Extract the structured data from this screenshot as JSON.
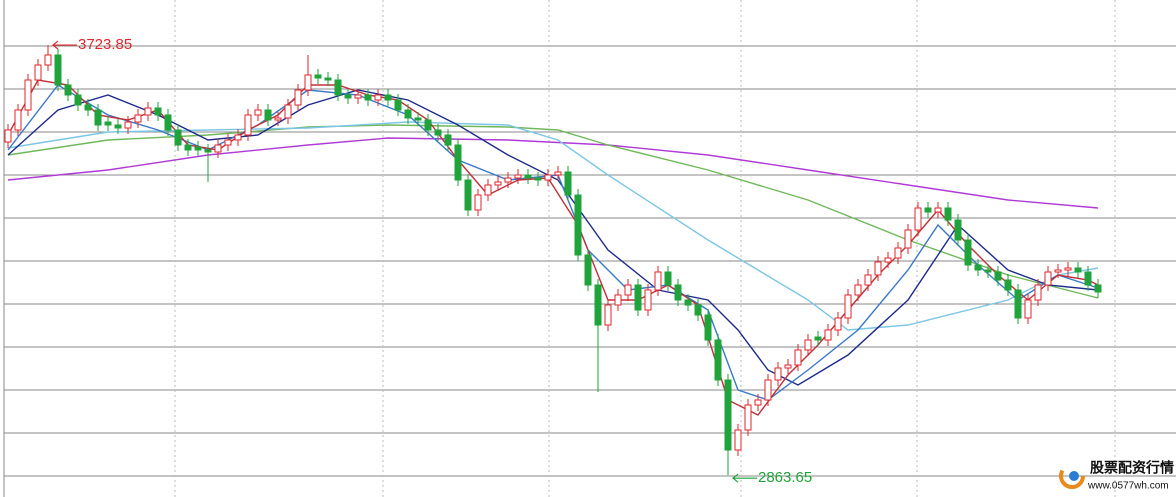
{
  "chart_data": {
    "type": "candlestick",
    "ylim": [
      2820,
      3814
    ],
    "yticks": [
      3722,
      3636,
      3550,
      3464,
      3378,
      3292,
      3206,
      3120,
      3034,
      2948,
      2862
    ],
    "xgrid": [
      16.7,
      37.5,
      54.1,
      73.3,
      90.9,
      110.7
    ],
    "grid": true,
    "up_color": "#e0262b",
    "down_color": "#1fa33a",
    "open": [
      3530,
      3554,
      3594,
      3654,
      3684,
      3704,
      3644,
      3624,
      3604,
      3594,
      3570,
      3564,
      3558,
      3570,
      3584,
      3598,
      3584,
      3554,
      3524,
      3520,
      3514,
      3510,
      3524,
      3534,
      3544,
      3584,
      3594,
      3574,
      3578,
      3604,
      3634,
      3664,
      3658,
      3654,
      3624,
      3618,
      3624,
      3614,
      3624,
      3614,
      3594,
      3578,
      3574,
      3554,
      3544,
      3524,
      3454,
      3394,
      3424,
      3444,
      3450,
      3458,
      3464,
      3458,
      3454,
      3464,
      3470,
      3424,
      3304,
      3244,
      3164,
      3204,
      3224,
      3244,
      3194,
      3234,
      3270,
      3244,
      3214,
      3204,
      3184,
      3134,
      3054,
      2914,
      2954,
      3004,
      3014,
      3054,
      3078,
      3084,
      3114,
      3140,
      3134,
      3154,
      3178,
      3224,
      3244,
      3264,
      3290,
      3298,
      3318,
      3354,
      3398,
      3390,
      3398,
      3374,
      3334,
      3284,
      3274,
      3270,
      3254,
      3234,
      3178,
      3214,
      3244,
      3270,
      3274,
      3278,
      3270,
      3244
    ],
    "high": [
      3566,
      3606,
      3666,
      3696,
      3723.85,
      3716,
      3656,
      3636,
      3616,
      3606,
      3582,
      3576,
      3582,
      3596,
      3610,
      3610,
      3596,
      3566,
      3536,
      3532,
      3526,
      3536,
      3546,
      3556,
      3596,
      3606,
      3606,
      3590,
      3616,
      3646,
      3704,
      3676,
      3670,
      3666,
      3636,
      3636,
      3636,
      3636,
      3636,
      3626,
      3606,
      3590,
      3586,
      3566,
      3556,
      3536,
      3466,
      3436,
      3456,
      3462,
      3470,
      3476,
      3476,
      3470,
      3476,
      3482,
      3482,
      3436,
      3316,
      3256,
      3216,
      3236,
      3256,
      3256,
      3246,
      3282,
      3282,
      3256,
      3226,
      3216,
      3196,
      3146,
      3066,
      2966,
      3016,
      3026,
      3066,
      3090,
      3096,
      3126,
      3146,
      3152,
      3166,
      3190,
      3236,
      3256,
      3276,
      3302,
      3310,
      3330,
      3366,
      3410,
      3410,
      3410,
      3410,
      3386,
      3346,
      3296,
      3286,
      3282,
      3266,
      3246,
      3226,
      3256,
      3282,
      3286,
      3290,
      3290,
      3282,
      3256
    ],
    "low": [
      3518,
      3542,
      3582,
      3642,
      3672,
      3632,
      3612,
      3592,
      3582,
      3552,
      3552,
      3546,
      3546,
      3558,
      3572,
      3572,
      3542,
      3512,
      3502,
      3502,
      3450,
      3498,
      3512,
      3522,
      3532,
      3572,
      3562,
      3562,
      3566,
      3592,
      3622,
      3646,
      3642,
      3612,
      3606,
      3606,
      3602,
      3602,
      3602,
      3582,
      3566,
      3562,
      3542,
      3532,
      3512,
      3442,
      3382,
      3382,
      3412,
      3432,
      3438,
      3446,
      3446,
      3442,
      3442,
      3452,
      3412,
      3292,
      3232,
      3030,
      3152,
      3192,
      3212,
      3182,
      3182,
      3222,
      3232,
      3202,
      3192,
      3172,
      3122,
      3042,
      2863.65,
      2902,
      2942,
      2992,
      3002,
      3042,
      3066,
      3072,
      3102,
      3122,
      3122,
      3142,
      3166,
      3212,
      3232,
      3252,
      3278,
      3286,
      3306,
      3342,
      3378,
      3378,
      3362,
      3322,
      3272,
      3262,
      3258,
      3242,
      3222,
      3166,
      3166,
      3202,
      3232,
      3258,
      3262,
      3258,
      3232,
      3218
    ],
    "close": [
      3554,
      3594,
      3654,
      3684,
      3704,
      3644,
      3624,
      3604,
      3594,
      3564,
      3564,
      3558,
      3570,
      3584,
      3598,
      3584,
      3554,
      3524,
      3514,
      3514,
      3510,
      3524,
      3534,
      3544,
      3584,
      3594,
      3574,
      3578,
      3604,
      3634,
      3664,
      3658,
      3654,
      3624,
      3618,
      3624,
      3614,
      3624,
      3614,
      3594,
      3578,
      3574,
      3554,
      3544,
      3524,
      3454,
      3394,
      3424,
      3444,
      3450,
      3458,
      3464,
      3458,
      3454,
      3464,
      3470,
      3424,
      3304,
      3244,
      3164,
      3204,
      3224,
      3244,
      3194,
      3234,
      3270,
      3244,
      3214,
      3204,
      3184,
      3134,
      3054,
      2914,
      2954,
      3004,
      3014,
      3054,
      3078,
      3084,
      3114,
      3134,
      3134,
      3154,
      3178,
      3224,
      3244,
      3264,
      3290,
      3298,
      3318,
      3354,
      3398,
      3390,
      3398,
      3374,
      3334,
      3284,
      3274,
      3270,
      3254,
      3234,
      3178,
      3214,
      3244,
      3270,
      3274,
      3278,
      3270,
      3244,
      3230
    ],
    "series": [
      {
        "color": "#b03ad6",
        "x": [
          0,
          10,
          20,
          30,
          38,
          50,
          60,
          70,
          80,
          90,
          100,
          109
        ],
        "values": [
          3454,
          3474,
          3504,
          3524,
          3538,
          3534,
          3524,
          3504,
          3474,
          3444,
          3414,
          3398
        ]
      },
      {
        "color": "#6fb85a",
        "x": [
          0,
          10,
          20,
          30,
          38,
          50,
          55,
          60,
          70,
          80,
          90,
          100,
          109
        ],
        "values": [
          3504,
          3534,
          3544,
          3560,
          3564,
          3560,
          3554,
          3524,
          3474,
          3414,
          3334,
          3264,
          3218
        ]
      },
      {
        "color": "#7cc6e6",
        "x": [
          0,
          10,
          20,
          30,
          40,
          50,
          55,
          60,
          70,
          80,
          84,
          90,
          100,
          105,
          109
        ],
        "values": [
          3518,
          3550,
          3554,
          3558,
          3570,
          3564,
          3534,
          3464,
          3334,
          3214,
          3154,
          3164,
          3214,
          3264,
          3278
        ]
      },
      {
        "color": "#1c2a8c",
        "x": [
          0,
          5,
          10,
          15,
          20,
          25,
          30,
          35,
          40,
          45,
          50,
          55,
          60,
          65,
          70,
          73,
          76,
          79,
          84,
          90,
          95,
          100,
          104,
          109
        ],
        "values": [
          3504,
          3594,
          3624,
          3584,
          3534,
          3544,
          3604,
          3634,
          3614,
          3564,
          3504,
          3454,
          3314,
          3234,
          3214,
          3154,
          3074,
          3044,
          3104,
          3214,
          3364,
          3274,
          3244,
          3234
        ]
      },
      {
        "color": "#3a78c8",
        "x": [
          0,
          5,
          10,
          15,
          20,
          25,
          30,
          35,
          40,
          45,
          50,
          55,
          58,
          62,
          66,
          70,
          73,
          76,
          80,
          85,
          90,
          93,
          97,
          101,
          105,
          109
        ],
        "values": [
          3514,
          3644,
          3584,
          3554,
          3514,
          3564,
          3634,
          3624,
          3584,
          3494,
          3454,
          3464,
          3314,
          3234,
          3244,
          3194,
          3034,
          3014,
          3074,
          3154,
          3274,
          3364,
          3284,
          3214,
          3264,
          3238
        ]
      },
      {
        "color": "#c0303a",
        "x": [
          0,
          3,
          6,
          9,
          12,
          15,
          18,
          21,
          24,
          27,
          30,
          33,
          36,
          39,
          42,
          45,
          48,
          51,
          54,
          57,
          60,
          63,
          66,
          69,
          72,
          75,
          78,
          81,
          84,
          87,
          90,
          93,
          96,
          99,
          102,
          105,
          108,
          109
        ],
        "values": [
          3544,
          3654,
          3644,
          3584,
          3574,
          3594,
          3524,
          3514,
          3554,
          3584,
          3644,
          3644,
          3624,
          3614,
          3574,
          3494,
          3424,
          3454,
          3458,
          3364,
          3214,
          3214,
          3244,
          3204,
          3014,
          2984,
          3064,
          3124,
          3194,
          3264,
          3324,
          3394,
          3324,
          3264,
          3214,
          3264,
          3254,
          3244
        ]
      }
    ]
  },
  "watermark": {
    "title": "股票配资行情",
    "url": "www.0577wh.com"
  }
}
